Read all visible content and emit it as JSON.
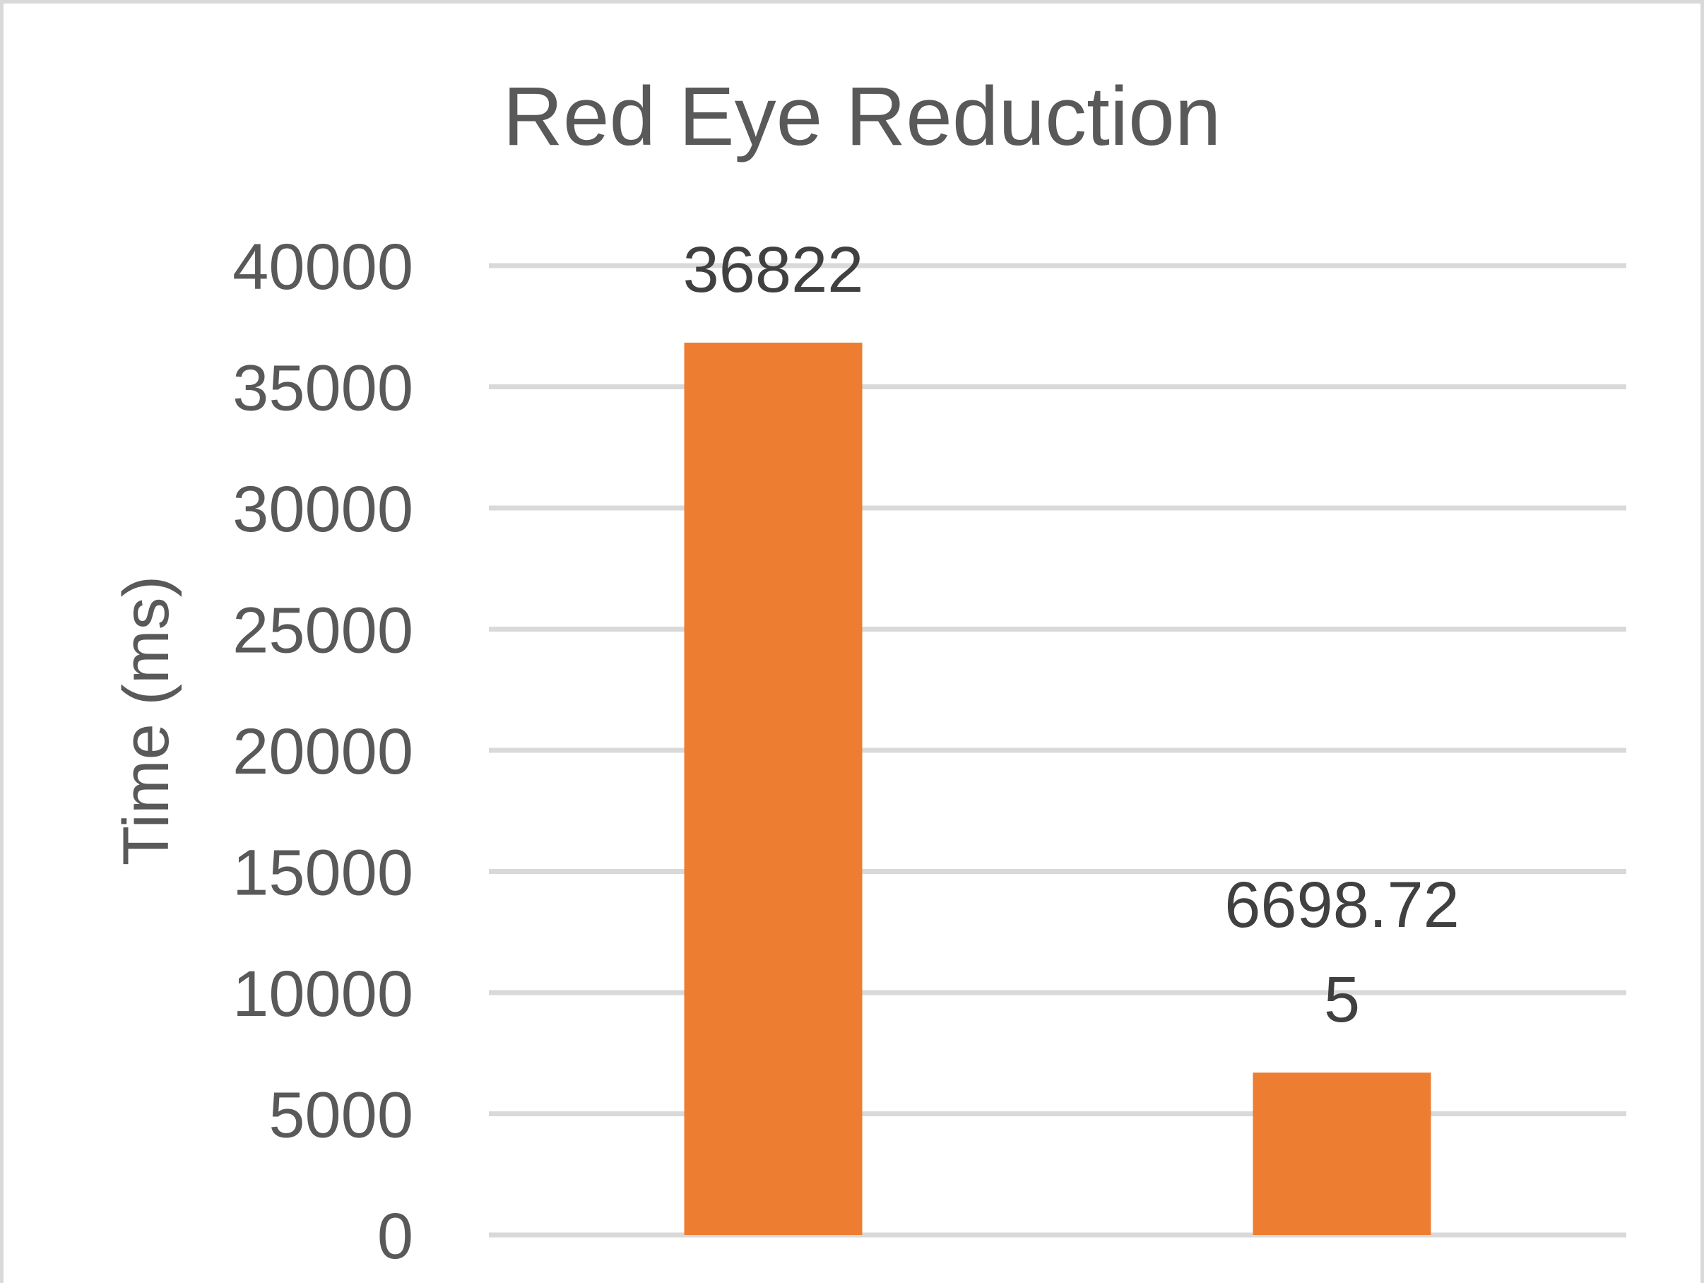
{
  "chart_data": {
    "type": "bar",
    "title": "Red Eye Reduction",
    "ylabel": "Time (ms)",
    "xlabel": "",
    "categories": [
      "",
      ""
    ],
    "values": [
      36822,
      6698.725
    ],
    "data_labels": [
      [
        "36822"
      ],
      [
        "6698.72",
        "5"
      ]
    ],
    "ylim": [
      0,
      40000
    ],
    "yticks": [
      0,
      5000,
      10000,
      15000,
      20000,
      25000,
      30000,
      35000,
      40000
    ],
    "grid": true,
    "legend": "none",
    "colors": {
      "bar": "#ED7D31",
      "grid": "#D9D9D9",
      "text": "#595959",
      "label": "#404040"
    }
  }
}
